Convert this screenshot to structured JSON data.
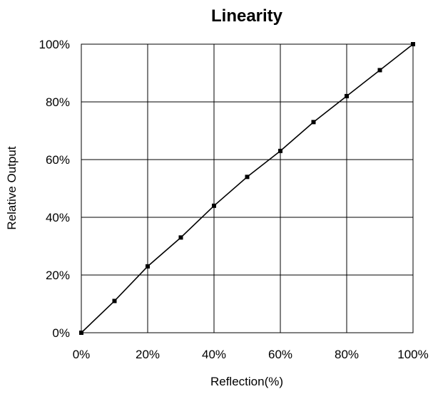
{
  "chart_data": {
    "type": "line",
    "title": "Linearity",
    "xlabel": "Reflection(%)",
    "ylabel": "Relative Output",
    "xlim": [
      0,
      100
    ],
    "ylim": [
      0,
      100
    ],
    "x_ticks": [
      0,
      20,
      40,
      60,
      80,
      100
    ],
    "y_ticks": [
      0,
      20,
      40,
      60,
      80,
      100
    ],
    "x_tick_labels": [
      "0%",
      "20%",
      "40%",
      "60%",
      "80%",
      "100%"
    ],
    "y_tick_labels": [
      "0%",
      "20%",
      "40%",
      "60%",
      "80%",
      "100%"
    ],
    "grid": true,
    "legend": "none",
    "series": [
      {
        "x": [
          0,
          10,
          20,
          30,
          40,
          50,
          60,
          70,
          80,
          90,
          100
        ],
        "y": [
          0,
          11,
          23,
          33,
          44,
          54,
          63,
          73,
          82,
          91,
          100
        ],
        "color": "#000000",
        "marker": "square"
      }
    ]
  }
}
